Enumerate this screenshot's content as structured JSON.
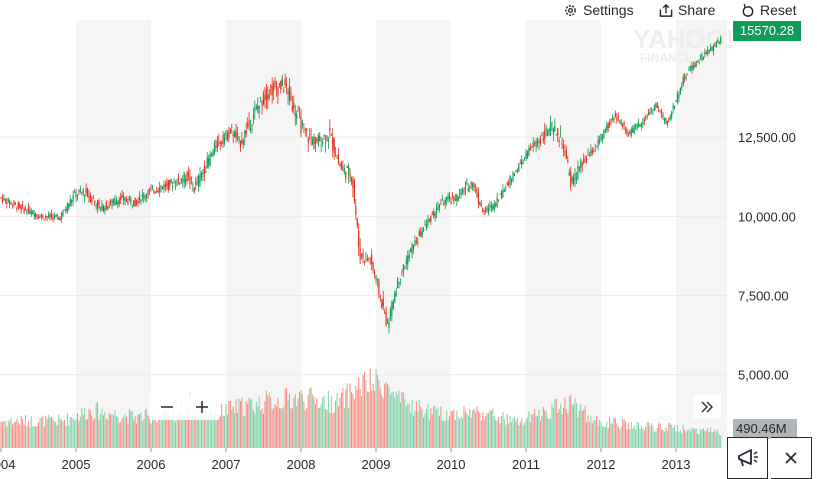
{
  "toolbar": {
    "settings_label": "Settings",
    "share_label": "Share",
    "reset_label": "Reset"
  },
  "watermark": {
    "line1": "YAHOO!",
    "line2": "FINANCE"
  },
  "price_badge": "15570.28",
  "volume_badge": "490.46M",
  "colors": {
    "up": "#0f9d58",
    "down": "#e0301e",
    "volume_up": "#7fd4a8",
    "volume_down": "#f28b82",
    "band": "#f5f5f5",
    "grid": "#ececec",
    "badge_bg": "#0f9d58"
  },
  "chart_data": {
    "type": "candlestick",
    "title": "",
    "xlabel": "",
    "ylabel": "",
    "x_range": [
      2004.0,
      2013.75
    ],
    "y_range": [
      4200,
      16200
    ],
    "y_ticks": [
      {
        "value": 12500,
        "label": "12,500.00"
      },
      {
        "value": 10000,
        "label": "10,000.00"
      },
      {
        "value": 7500,
        "label": "7,500.00"
      },
      {
        "value": 5000,
        "label": "5,000.00"
      }
    ],
    "x_ticks": [
      {
        "value": 2004,
        "label": "2004"
      },
      {
        "value": 2005,
        "label": "2005"
      },
      {
        "value": 2006,
        "label": "2006"
      },
      {
        "value": 2007,
        "label": "2007"
      },
      {
        "value": 2008,
        "label": "2008"
      },
      {
        "value": 2009,
        "label": "2009"
      },
      {
        "value": 2010,
        "label": "2010"
      },
      {
        "value": 2011,
        "label": "2011"
      },
      {
        "value": 2012,
        "label": "2012"
      },
      {
        "value": 2013,
        "label": "2013"
      }
    ],
    "shaded_years": [
      2005,
      2007,
      2009,
      2011,
      2013
    ],
    "series": [
      {
        "price_path": [
          [
            2004.0,
            10600
          ],
          [
            2004.3,
            10250
          ],
          [
            2004.55,
            10000
          ],
          [
            2004.8,
            9950
          ],
          [
            2005.0,
            10700
          ],
          [
            2005.15,
            10750
          ],
          [
            2005.35,
            10250
          ],
          [
            2005.6,
            10550
          ],
          [
            2005.8,
            10450
          ],
          [
            2006.0,
            10800
          ],
          [
            2006.3,
            11050
          ],
          [
            2006.5,
            11250
          ],
          [
            2006.6,
            10900
          ],
          [
            2006.9,
            12300
          ],
          [
            2007.1,
            12700
          ],
          [
            2007.2,
            12300
          ],
          [
            2007.45,
            13500
          ],
          [
            2007.6,
            14000
          ],
          [
            2007.8,
            14150
          ],
          [
            2007.95,
            13300
          ],
          [
            2008.05,
            12700
          ],
          [
            2008.2,
            12300
          ],
          [
            2008.4,
            12600
          ],
          [
            2008.55,
            11500
          ],
          [
            2008.7,
            11300
          ],
          [
            2008.8,
            8800
          ],
          [
            2008.95,
            8600
          ],
          [
            2009.05,
            7700
          ],
          [
            2009.17,
            6550
          ],
          [
            2009.3,
            7900
          ],
          [
            2009.5,
            9000
          ],
          [
            2009.7,
            9800
          ],
          [
            2009.9,
            10450
          ],
          [
            2010.1,
            10600
          ],
          [
            2010.3,
            11100
          ],
          [
            2010.45,
            10100
          ],
          [
            2010.6,
            10400
          ],
          [
            2010.9,
            11500
          ],
          [
            2011.1,
            12200
          ],
          [
            2011.35,
            12800
          ],
          [
            2011.5,
            12400
          ],
          [
            2011.62,
            11000
          ],
          [
            2011.75,
            11600
          ],
          [
            2011.95,
            12200
          ],
          [
            2012.2,
            13200
          ],
          [
            2012.4,
            12600
          ],
          [
            2012.6,
            13100
          ],
          [
            2012.75,
            13500
          ],
          [
            2012.9,
            12900
          ],
          [
            2013.05,
            13900
          ],
          [
            2013.15,
            14500
          ],
          [
            2013.3,
            14900
          ],
          [
            2013.5,
            15300
          ],
          [
            2013.6,
            15570
          ]
        ],
        "volume_path": [
          [
            2004.0,
            1.5
          ],
          [
            2004.8,
            1.5
          ],
          [
            2005.2,
            2.1
          ],
          [
            2005.8,
            1.7
          ],
          [
            2006.3,
            1.9
          ],
          [
            2006.5,
            2.5
          ],
          [
            2006.9,
            2.0
          ],
          [
            2007.2,
            2.3
          ],
          [
            2007.6,
            2.6
          ],
          [
            2008.0,
            2.8
          ],
          [
            2008.5,
            2.5
          ],
          [
            2008.8,
            3.5
          ],
          [
            2009.1,
            3.6
          ],
          [
            2009.3,
            2.6
          ],
          [
            2009.8,
            1.9
          ],
          [
            2010.4,
            2.0
          ],
          [
            2010.9,
            1.4
          ],
          [
            2011.6,
            2.6
          ],
          [
            2011.9,
            1.5
          ],
          [
            2012.5,
            1.2
          ],
          [
            2013.0,
            1.1
          ],
          [
            2013.6,
            0.9
          ]
        ]
      }
    ]
  }
}
